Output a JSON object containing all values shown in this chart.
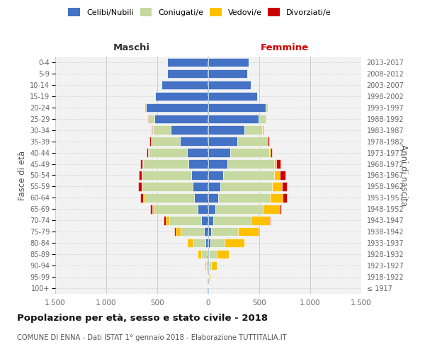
{
  "age_groups": [
    "100+",
    "95-99",
    "90-94",
    "85-89",
    "80-84",
    "75-79",
    "70-74",
    "65-69",
    "60-64",
    "55-59",
    "50-54",
    "45-49",
    "40-44",
    "35-39",
    "30-34",
    "25-29",
    "20-24",
    "15-19",
    "10-14",
    "5-9",
    "0-4"
  ],
  "birth_years": [
    "≤ 1917",
    "1918-1922",
    "1923-1927",
    "1928-1932",
    "1933-1937",
    "1938-1942",
    "1943-1947",
    "1948-1952",
    "1953-1957",
    "1958-1962",
    "1963-1967",
    "1968-1972",
    "1973-1977",
    "1978-1982",
    "1983-1987",
    "1988-1992",
    "1993-1997",
    "1998-2002",
    "2003-2007",
    "2008-2012",
    "2013-2017"
  ],
  "colors": {
    "celibi": "#4472c4",
    "coniugati": "#c5d9a0",
    "vedovi": "#ffc000",
    "divorziati": "#cc0000"
  },
  "maschi": {
    "celibi": [
      0,
      2,
      4,
      12,
      25,
      45,
      70,
      105,
      140,
      155,
      170,
      195,
      210,
      275,
      370,
      530,
      610,
      520,
      455,
      405,
      405
    ],
    "coniugati": [
      0,
      2,
      18,
      55,
      120,
      225,
      310,
      420,
      485,
      490,
      475,
      445,
      375,
      285,
      175,
      55,
      18,
      5,
      2,
      2,
      2
    ],
    "vedovi": [
      0,
      2,
      12,
      35,
      60,
      48,
      38,
      22,
      14,
      9,
      7,
      5,
      3,
      2,
      1,
      1,
      1,
      1,
      0,
      0,
      0
    ],
    "divorziati": [
      0,
      0,
      0,
      2,
      5,
      13,
      18,
      22,
      28,
      33,
      28,
      25,
      18,
      11,
      7,
      4,
      2,
      1,
      0,
      0,
      0
    ]
  },
  "femmine": {
    "celibi": [
      0,
      2,
      4,
      8,
      18,
      30,
      48,
      68,
      95,
      115,
      145,
      185,
      215,
      285,
      355,
      490,
      560,
      480,
      420,
      385,
      395
    ],
    "coniugati": [
      1,
      4,
      25,
      72,
      140,
      260,
      370,
      470,
      510,
      510,
      500,
      460,
      385,
      295,
      175,
      65,
      22,
      7,
      2,
      2,
      2
    ],
    "vedovi": [
      2,
      12,
      55,
      120,
      195,
      205,
      185,
      165,
      125,
      95,
      55,
      22,
      9,
      4,
      2,
      1,
      1,
      0,
      0,
      0,
      0
    ],
    "divorziati": [
      0,
      0,
      0,
      2,
      4,
      7,
      9,
      11,
      38,
      52,
      58,
      42,
      18,
      11,
      7,
      4,
      2,
      1,
      0,
      0,
      0
    ]
  },
  "title": "Popolazione per età, sesso e stato civile - 2018",
  "subtitle": "COMUNE DI ENNA - Dati ISTAT 1° gennaio 2018 - Elaborazione TUTTITALIA.IT",
  "maschi_label": "Maschi",
  "femmine_label": "Femmine",
  "ylabel_left": "Fasce di età",
  "ylabel_right": "Anni di nascita",
  "xlim": 1500,
  "legend_labels": [
    "Celibi/Nubili",
    "Coniugati/e",
    "Vedovi/e",
    "Divorziati/e"
  ],
  "bg_color": "#f2f2f2"
}
